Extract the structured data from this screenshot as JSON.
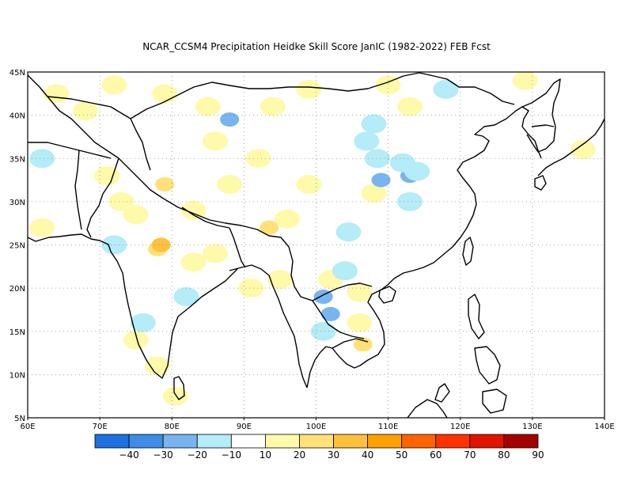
{
  "title": "NCAR_CCSM4  Precipitation Heidke Skill Score JanIC (1982-2022) FEB Fcst",
  "map": {
    "lon_min": 60,
    "lon_max": 140,
    "lat_min": 5,
    "lat_max": 45,
    "lon_ticks": [
      {
        "value": 60,
        "label": "60E"
      },
      {
        "value": 70,
        "label": "70E"
      },
      {
        "value": 80,
        "label": "80E"
      },
      {
        "value": 90,
        "label": "90E"
      },
      {
        "value": 100,
        "label": "100E"
      },
      {
        "value": 110,
        "label": "110E"
      },
      {
        "value": 120,
        "label": "120E"
      },
      {
        "value": 130,
        "label": "130E"
      },
      {
        "value": 140,
        "label": "140E"
      }
    ],
    "lat_ticks": [
      {
        "value": 5,
        "label": "5N"
      },
      {
        "value": 10,
        "label": "10N"
      },
      {
        "value": 15,
        "label": "15N"
      },
      {
        "value": 20,
        "label": "20N"
      },
      {
        "value": 25,
        "label": "25N"
      },
      {
        "value": 30,
        "label": "30N"
      },
      {
        "value": 35,
        "label": "35N"
      },
      {
        "value": 40,
        "label": "40N"
      },
      {
        "value": 45,
        "label": "45N"
      }
    ],
    "grid": "dotted"
  },
  "colorbar": {
    "labels": [
      "-40",
      "-30",
      "-20",
      "-10",
      "10",
      "20",
      "30",
      "40",
      "50",
      "60",
      "70",
      "80",
      "90"
    ],
    "colors": [
      "#1e6fe0",
      "#3c8ce8",
      "#78b4f0",
      "#b4ecf8",
      "#ffffff",
      "#fffaaa",
      "#ffe178",
      "#ffc03c",
      "#ffa000",
      "#ff6400",
      "#ff3200",
      "#e11400",
      "#a50000"
    ]
  },
  "chart_data": {
    "type": "heatmap",
    "title": "NCAR_CCSM4  Precipitation Heidke Skill Score JanIC (1982-2022) FEB Fcst",
    "x_range": [
      60,
      140
    ],
    "y_range": [
      5,
      45
    ],
    "patches": [
      {
        "lon": 64,
        "lat": 42.5,
        "value": 15
      },
      {
        "lon": 68,
        "lat": 40.5,
        "value": 15
      },
      {
        "lon": 72,
        "lat": 43.5,
        "value": 15
      },
      {
        "lon": 79,
        "lat": 42.5,
        "value": 15
      },
      {
        "lon": 85,
        "lat": 41,
        "value": 15
      },
      {
        "lon": 86,
        "lat": 37,
        "value": 15
      },
      {
        "lon": 94,
        "lat": 41,
        "value": 15
      },
      {
        "lon": 99,
        "lat": 43,
        "value": 15
      },
      {
        "lon": 110,
        "lat": 43.5,
        "value": 15
      },
      {
        "lon": 113,
        "lat": 41,
        "value": 15
      },
      {
        "lon": 129,
        "lat": 44,
        "value": 15
      },
      {
        "lon": 137,
        "lat": 36,
        "value": 15
      },
      {
        "lon": 71,
        "lat": 33,
        "value": 15
      },
      {
        "lon": 73,
        "lat": 30,
        "value": 15
      },
      {
        "lon": 62,
        "lat": 27,
        "value": 15
      },
      {
        "lon": 79,
        "lat": 32,
        "value": 25
      },
      {
        "lon": 75,
        "lat": 28.5,
        "value": 15
      },
      {
        "lon": 83,
        "lat": 29,
        "value": 15
      },
      {
        "lon": 88,
        "lat": 32,
        "value": 15
      },
      {
        "lon": 92,
        "lat": 35,
        "value": 15
      },
      {
        "lon": 96,
        "lat": 28,
        "value": 15
      },
      {
        "lon": 93.5,
        "lat": 27,
        "value": 25
      },
      {
        "lon": 99,
        "lat": 32,
        "value": 15
      },
      {
        "lon": 108,
        "lat": 31,
        "value": 15
      },
      {
        "lon": 78,
        "lat": 24.5,
        "value": 25
      },
      {
        "lon": 78.5,
        "lat": 25,
        "value": 35
      },
      {
        "lon": 83,
        "lat": 23,
        "value": 15
      },
      {
        "lon": 86,
        "lat": 24,
        "value": 15
      },
      {
        "lon": 91,
        "lat": 20,
        "value": 15
      },
      {
        "lon": 95,
        "lat": 21,
        "value": 15
      },
      {
        "lon": 102,
        "lat": 21,
        "value": 15
      },
      {
        "lon": 106,
        "lat": 19.5,
        "value": 15
      },
      {
        "lon": 106.5,
        "lat": 13.5,
        "value": 25
      },
      {
        "lon": 106,
        "lat": 16,
        "value": 15
      },
      {
        "lon": 75,
        "lat": 14,
        "value": 15
      },
      {
        "lon": 78,
        "lat": 11,
        "value": 15
      },
      {
        "lon": 80.5,
        "lat": 7.5,
        "value": 15
      },
      {
        "lon": 88,
        "lat": 39.5,
        "value": -25
      },
      {
        "lon": 109,
        "lat": 32.5,
        "value": -25
      },
      {
        "lon": 108.5,
        "lat": 35,
        "value": -15
      },
      {
        "lon": 113,
        "lat": 33,
        "value": -25
      },
      {
        "lon": 114,
        "lat": 33.5,
        "value": -15
      },
      {
        "lon": 113,
        "lat": 30,
        "value": -15
      },
      {
        "lon": 108,
        "lat": 39,
        "value": -15
      },
      {
        "lon": 107,
        "lat": 37,
        "value": -15
      },
      {
        "lon": 118,
        "lat": 43,
        "value": -15
      },
      {
        "lon": 112,
        "lat": 34.5,
        "value": -15
      },
      {
        "lon": 62,
        "lat": 35,
        "value": -15
      },
      {
        "lon": 72,
        "lat": 25,
        "value": -15
      },
      {
        "lon": 76,
        "lat": 16,
        "value": -15
      },
      {
        "lon": 82,
        "lat": 19,
        "value": -15
      },
      {
        "lon": 101,
        "lat": 19,
        "value": -25
      },
      {
        "lon": 102,
        "lat": 17,
        "value": -25
      },
      {
        "lon": 101,
        "lat": 15,
        "value": -15
      },
      {
        "lon": 104,
        "lat": 22,
        "value": -15
      },
      {
        "lon": 104.5,
        "lat": 26.5,
        "value": -15
      }
    ]
  }
}
